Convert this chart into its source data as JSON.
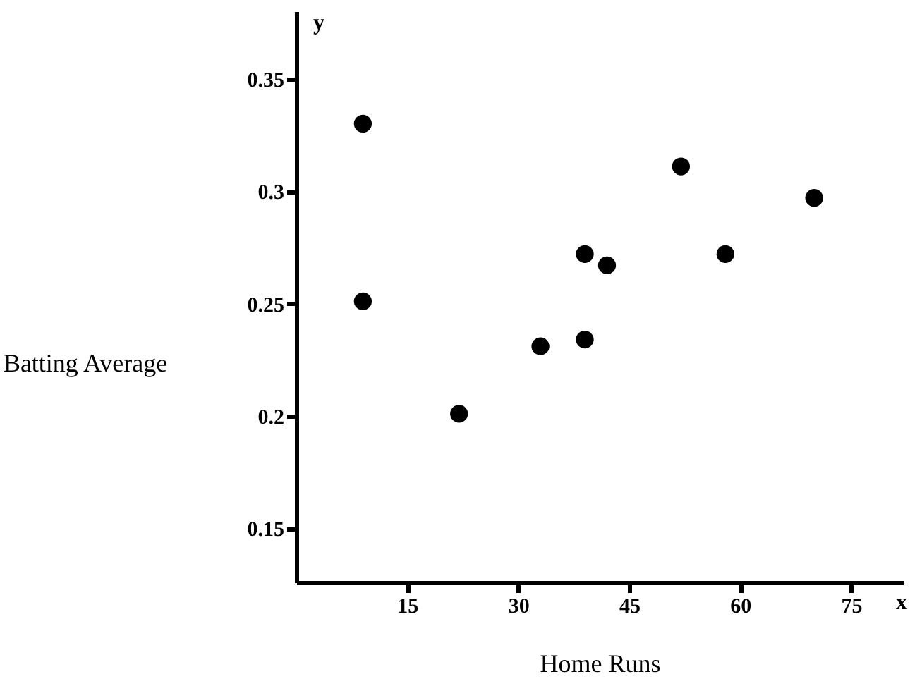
{
  "chart_data": {
    "type": "scatter",
    "xlabel": "Home Runs",
    "ylabel": "Batting Average",
    "x": [
      9,
      9,
      22,
      33,
      39,
      39,
      42,
      52,
      58,
      70
    ],
    "values": [
      0.33,
      0.251,
      0.201,
      0.231,
      0.234,
      0.272,
      0.267,
      0.311,
      0.272,
      0.297
    ],
    "color": "#000000",
    "marker": "circle",
    "xlim": [
      0,
      82
    ],
    "ylim": [
      0.126,
      0.38
    ],
    "xticks": [
      15,
      30,
      45,
      60,
      75
    ],
    "yticks": [
      0.15,
      0.2,
      0.25,
      0.3,
      0.35
    ],
    "annotations": [
      "x",
      "y"
    ]
  }
}
